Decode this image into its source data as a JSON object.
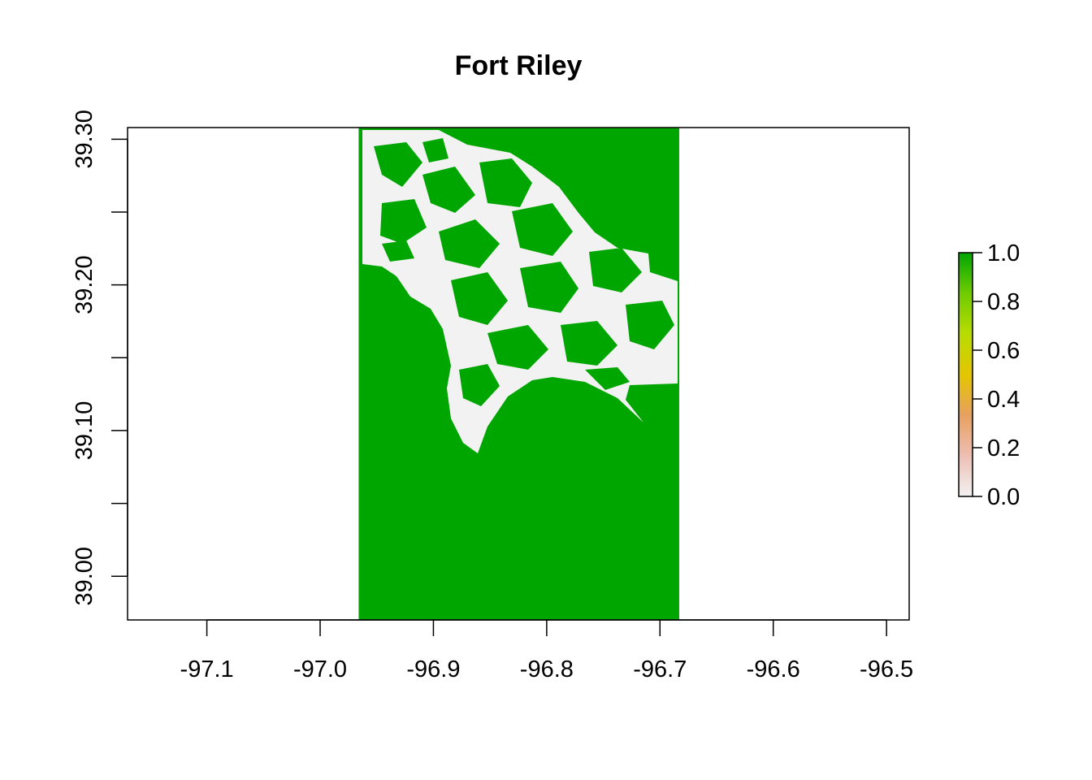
{
  "chart_data": {
    "type": "heatmap",
    "title": "Fort Riley",
    "xlabel": "",
    "ylabel": "",
    "xlim": [
      -97.17,
      -96.48
    ],
    "ylim": [
      38.97,
      39.308
    ],
    "x_ticks": [
      -97.1,
      -97.0,
      -96.9,
      -96.8,
      -96.7,
      -96.6,
      -96.5
    ],
    "x_tick_labels": [
      "-97.1",
      "-97.0",
      "-96.9",
      "-96.8",
      "-96.7",
      "-96.6",
      "-96.5"
    ],
    "y_ticks": [
      39.0,
      39.05,
      39.1,
      39.15,
      39.2,
      39.25,
      39.3
    ],
    "y_tick_labels": [
      "39.00",
      "",
      "39.10",
      "",
      "39.20",
      "",
      "39.30"
    ],
    "raster_extent": {
      "xmin": -96.966,
      "xmax": -96.683,
      "ymin": 38.97,
      "ymax": 39.308
    },
    "fill_value_majority": 1.0,
    "color_scale": {
      "min": 0.0,
      "max": 1.0,
      "ticks": [
        1.0,
        0.8,
        0.6,
        0.4,
        0.2,
        0.0
      ],
      "tick_labels": [
        "1.0",
        "0.8",
        "0.6",
        "0.4",
        "0.2",
        "0.0"
      ],
      "colors": [
        "#f2f2f2",
        "#eebeb3",
        "#e8a060",
        "#e4c600",
        "#b9dc00",
        "#6fcc00",
        "#00a600"
      ]
    },
    "grid": false,
    "legend_position": "right"
  },
  "colors": {
    "value_1": "#00a600",
    "value_0": "#f2f2f2",
    "axis": "#000000"
  }
}
